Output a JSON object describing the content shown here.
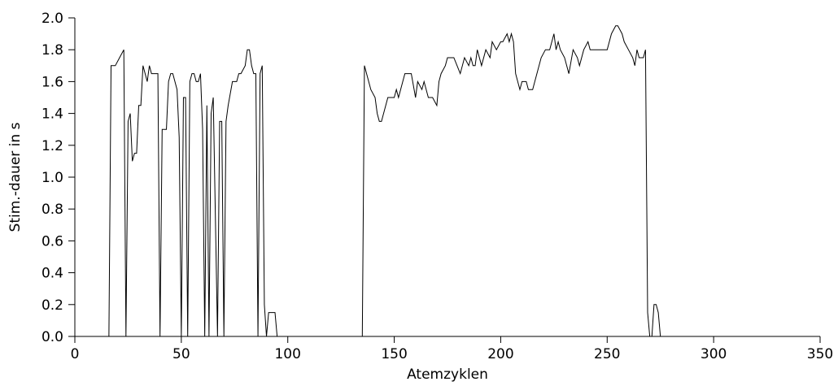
{
  "chart_data": {
    "type": "line",
    "xlabel": "Atemzyklen",
    "ylabel": "Stim.-dauer in s",
    "xlim": [
      0,
      350
    ],
    "ylim": [
      0,
      2.0
    ],
    "xticks": [
      0,
      50,
      100,
      150,
      200,
      250,
      300,
      350
    ],
    "yticks": [
      {
        "value": 0,
        "label": "0.0"
      },
      0.2,
      0.4,
      0.6,
      0.8,
      {
        "value": 1,
        "label": "1.0"
      },
      1.2,
      1.4,
      1.6,
      1.8,
      {
        "value": 2,
        "label": "2.0"
      }
    ],
    "grid": false,
    "series": [
      {
        "color": "#000000",
        "x": [
          0,
          16,
          17,
          19,
          21,
          23,
          24,
          25,
          26,
          27,
          28,
          29,
          30,
          31,
          32,
          34,
          35,
          36,
          39,
          40,
          41,
          43,
          44,
          45,
          46,
          48,
          49,
          50,
          51,
          52,
          53,
          54,
          55,
          56,
          57,
          58,
          59,
          60,
          61,
          62,
          63,
          64,
          65,
          67,
          68,
          69,
          70,
          71,
          72,
          74,
          76,
          77,
          78,
          80,
          81,
          82,
          83,
          84,
          85,
          86,
          87,
          88,
          89,
          90,
          91,
          94,
          95,
          135,
          136,
          138,
          139,
          141,
          142,
          143,
          144,
          147,
          150,
          151,
          152,
          154,
          155,
          158,
          160,
          161,
          163,
          164,
          166,
          168,
          170,
          171,
          172,
          174,
          175,
          178,
          181,
          183,
          185,
          186,
          187,
          188,
          189,
          191,
          193,
          195,
          196,
          198,
          200,
          201,
          203,
          204,
          205,
          206,
          207,
          209,
          210,
          212,
          213,
          215,
          217,
          219,
          221,
          223,
          225,
          226,
          227,
          228,
          230,
          232,
          234,
          236,
          237,
          239,
          241,
          242,
          250,
          252,
          254,
          255,
          257,
          258,
          260,
          262,
          263,
          264,
          265,
          267,
          268,
          269,
          270,
          271,
          272,
          273,
          274,
          275,
          315
        ],
        "values": [
          0,
          0,
          1.7,
          1.7,
          1.75,
          1.8,
          0,
          1.35,
          1.4,
          1.1,
          1.15,
          1.15,
          1.45,
          1.45,
          1.7,
          1.6,
          1.7,
          1.65,
          1.65,
          0,
          1.3,
          1.3,
          1.6,
          1.65,
          1.65,
          1.55,
          1.25,
          0,
          1.5,
          1.5,
          0,
          1.6,
          1.65,
          1.65,
          1.6,
          1.6,
          1.65,
          1.3,
          0,
          1.45,
          0,
          1.4,
          1.5,
          0,
          1.35,
          1.35,
          0,
          1.35,
          1.45,
          1.6,
          1.6,
          1.65,
          1.65,
          1.7,
          1.8,
          1.8,
          1.7,
          1.65,
          1.65,
          0,
          1.65,
          1.7,
          0.2,
          0,
          0.15,
          0.15,
          0,
          0,
          1.7,
          1.6,
          1.55,
          1.5,
          1.4,
          1.35,
          1.35,
          1.5,
          1.5,
          1.55,
          1.5,
          1.6,
          1.65,
          1.65,
          1.5,
          1.6,
          1.55,
          1.6,
          1.5,
          1.5,
          1.45,
          1.6,
          1.65,
          1.7,
          1.75,
          1.75,
          1.65,
          1.75,
          1.7,
          1.75,
          1.7,
          1.7,
          1.8,
          1.7,
          1.8,
          1.75,
          1.85,
          1.8,
          1.85,
          1.85,
          1.9,
          1.85,
          1.9,
          1.85,
          1.65,
          1.55,
          1.6,
          1.6,
          1.55,
          1.55,
          1.65,
          1.75,
          1.8,
          1.8,
          1.9,
          1.8,
          1.85,
          1.8,
          1.75,
          1.65,
          1.8,
          1.75,
          1.7,
          1.8,
          1.85,
          1.8,
          1.8,
          1.9,
          1.95,
          1.95,
          1.9,
          1.85,
          1.8,
          1.75,
          1.7,
          1.8,
          1.75,
          1.75,
          1.8,
          0.15,
          0,
          0,
          0.2,
          0.2,
          0.15,
          0,
          0
        ]
      }
    ]
  }
}
